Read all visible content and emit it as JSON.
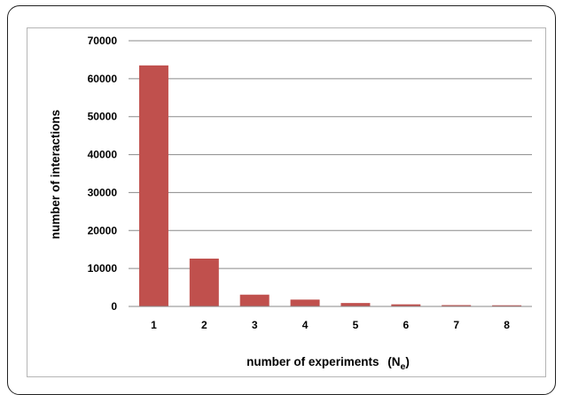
{
  "chart_data": {
    "type": "bar",
    "categories": [
      "1",
      "2",
      "3",
      "4",
      "5",
      "6",
      "7",
      "8"
    ],
    "values": [
      63500,
      12600,
      3100,
      1800,
      900,
      550,
      350,
      300
    ],
    "xlabel": "number of experiments",
    "xlabel_symbol": "(N",
    "xlabel_subscript": "e",
    "xlabel_close": ")",
    "ylabel": "number of interactions",
    "ylim": [
      0,
      70000
    ],
    "yticks": [
      "0",
      "10000",
      "20000",
      "30000",
      "40000",
      "50000",
      "60000",
      "70000"
    ],
    "grid": true,
    "legend": "none",
    "bar_color": "#c0504d"
  }
}
